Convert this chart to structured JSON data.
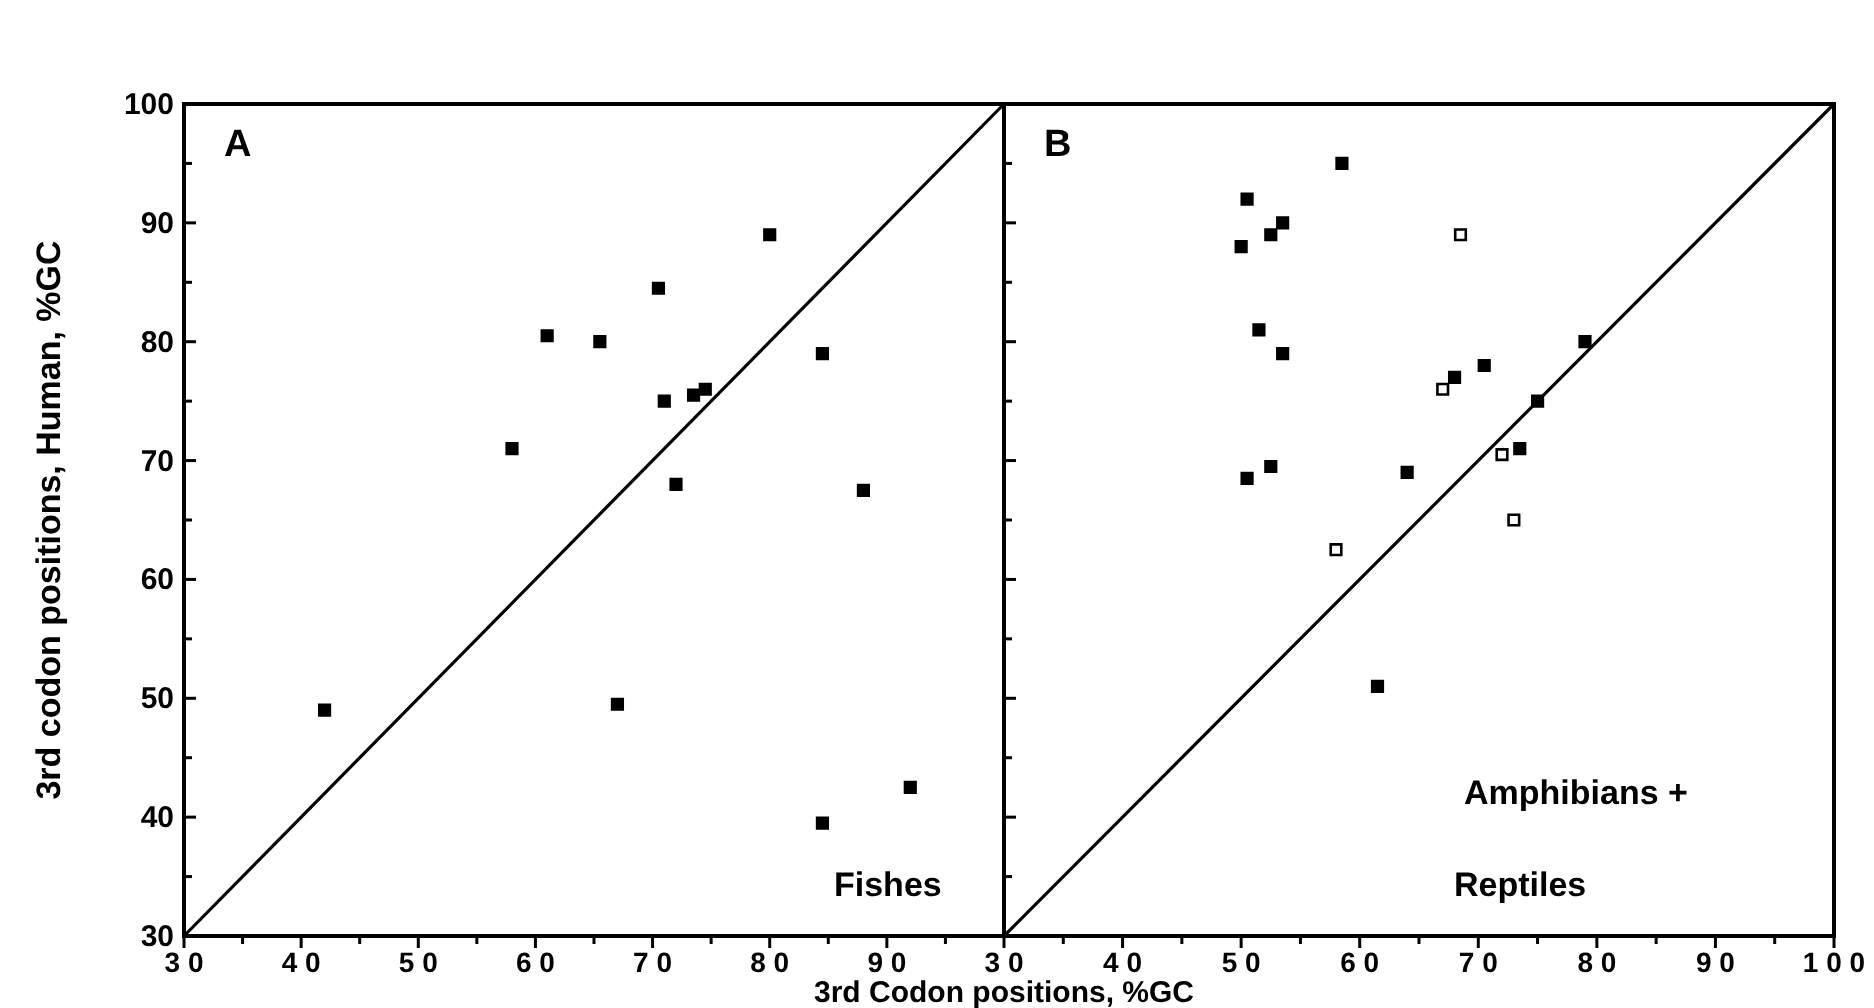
{
  "chart_data": [
    {
      "type": "scatter",
      "title": "A",
      "ylabel": "3rd codon positions, Human, %GC",
      "xlabel": "3rd Codon positions, %GC",
      "grid": false,
      "xlim": [
        30,
        100
      ],
      "ylim": [
        30,
        100
      ],
      "xticks": [
        30,
        {
          "value": 35,
          "label": null
        },
        40,
        {
          "value": 45,
          "label": null
        },
        50,
        {
          "value": 55,
          "label": null
        },
        60,
        {
          "value": 65,
          "label": null
        },
        70,
        {
          "value": 75,
          "label": null
        },
        80,
        {
          "value": 85,
          "label": null
        },
        90,
        {
          "value": 95,
          "label": null
        }
      ],
      "yticks": [
        30,
        {
          "value": 35,
          "label": null
        },
        40,
        {
          "value": 45,
          "label": null
        },
        50,
        {
          "value": 55,
          "label": null
        },
        60,
        {
          "value": 65,
          "label": null
        },
        70,
        {
          "value": 75,
          "label": null
        },
        80,
        {
          "value": 85,
          "label": null
        },
        90,
        {
          "value": 95,
          "label": null
        },
        100
      ],
      "annotations": [
        "Fishes"
      ],
      "series": [
        {
          "color": "#000000",
          "marker": "square",
          "x": [
            42,
            58,
            61,
            65.5,
            70.5,
            71,
            73.5,
            74.5,
            80,
            84.5,
            72,
            88,
            67,
            84.5,
            92
          ],
          "values": [
            49,
            71,
            80.5,
            80,
            84.5,
            75,
            75.5,
            76,
            89,
            79,
            68,
            67.5,
            49.5,
            39.5,
            42.5
          ]
        },
        {
          "type": "line",
          "color": "#000000",
          "x": [
            30,
            100
          ],
          "values": [
            30,
            100
          ]
        }
      ]
    },
    {
      "type": "scatter",
      "title": "B",
      "grid": false,
      "tick_labels": "x",
      "xlim": [
        30,
        100
      ],
      "ylim": [
        30,
        100
      ],
      "xticks": [
        30,
        {
          "value": 35,
          "label": null
        },
        40,
        {
          "value": 45,
          "label": null
        },
        50,
        {
          "value": 55,
          "label": null
        },
        60,
        {
          "value": 65,
          "label": null
        },
        70,
        {
          "value": 75,
          "label": null
        },
        80,
        {
          "value": 85,
          "label": null
        },
        90,
        {
          "value": 95,
          "label": null
        },
        100
      ],
      "yticks": [
        30,
        {
          "value": 35,
          "label": null
        },
        40,
        {
          "value": 45,
          "label": null
        },
        50,
        {
          "value": 55,
          "label": null
        },
        60,
        {
          "value": 65,
          "label": null
        },
        70,
        {
          "value": 75,
          "label": null
        },
        80,
        {
          "value": 85,
          "label": null
        },
        90,
        {
          "value": 95,
          "label": null
        },
        100
      ],
      "annotations": [
        "Amphibians +",
        "Reptiles"
      ],
      "series": [
        {
          "color": "#000000",
          "marker": "square",
          "x": [
            50,
            50.5,
            52.5,
            53.5,
            58.5,
            51.5,
            53.5,
            50.5,
            52.5,
            64,
            61.5,
            68,
            70.5,
            75,
            79,
            73.5
          ],
          "values": [
            88,
            92,
            89,
            90,
            95,
            81,
            79,
            68.5,
            69.5,
            69,
            51,
            77,
            78,
            75,
            80,
            71
          ]
        },
        {
          "color": "#ffffff",
          "marker": "square",
          "x": [
            68.5,
            67,
            72,
            73,
            58
          ],
          "values": [
            89,
            76,
            70.5,
            65,
            62.5
          ]
        },
        {
          "type": "line",
          "color": "#000000",
          "x": [
            30,
            100
          ],
          "values": [
            30,
            100
          ]
        }
      ]
    }
  ]
}
